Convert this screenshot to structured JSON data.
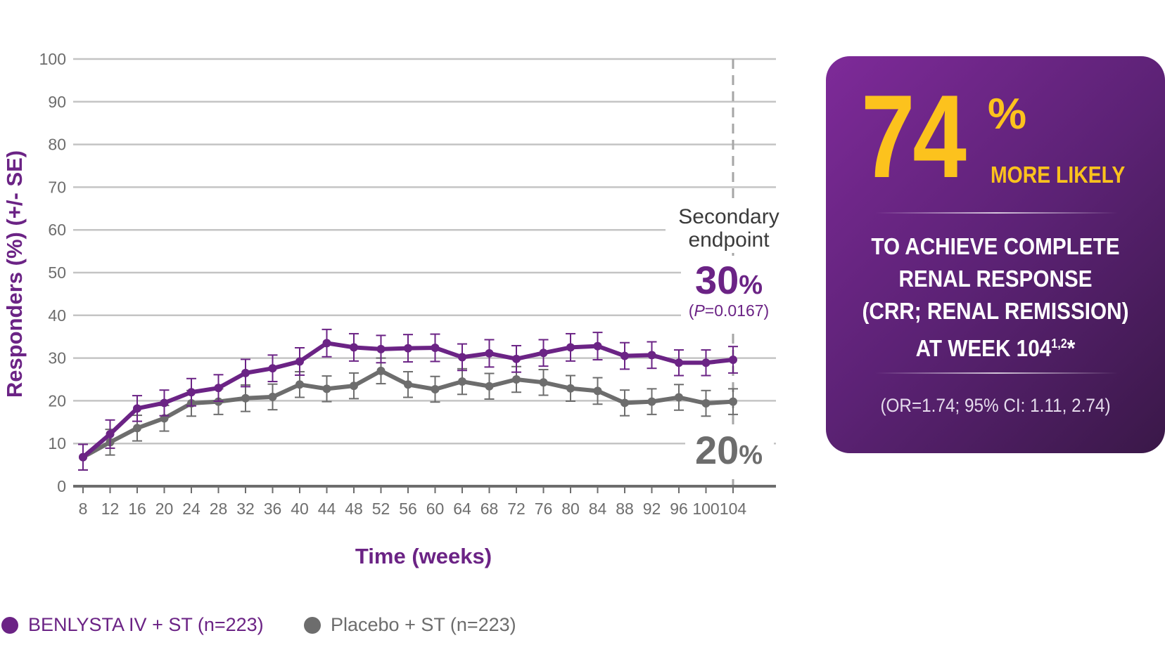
{
  "chart_data": {
    "type": "line",
    "ylabel": "Responders (%) (+/- SE)",
    "xlabel": "Time (weeks)",
    "ylim": [
      0,
      100
    ],
    "yticks": [
      0,
      10,
      20,
      30,
      40,
      50,
      60,
      70,
      80,
      90,
      100
    ],
    "x": [
      8,
      12,
      16,
      20,
      24,
      28,
      32,
      36,
      40,
      44,
      48,
      52,
      56,
      60,
      64,
      68,
      72,
      76,
      80,
      84,
      88,
      92,
      96,
      100,
      104
    ],
    "grid": true,
    "legend_position": "bottom-left",
    "series": [
      {
        "name": "BENLYSTA IV + ST (n=223)",
        "color": "#6b2385",
        "values": [
          6.8,
          12.2,
          18.2,
          19.5,
          22.0,
          23.0,
          26.5,
          27.6,
          29.2,
          33.5,
          32.5,
          32.1,
          32.3,
          32.4,
          30.2,
          31.1,
          29.8,
          31.2,
          32.5,
          32.8,
          30.5,
          30.7,
          28.9,
          28.9,
          29.6
        ],
        "se": [
          3.0,
          3.3,
          3.0,
          3.0,
          3.2,
          3.1,
          3.2,
          3.1,
          3.2,
          3.2,
          3.2,
          3.2,
          3.2,
          3.2,
          3.1,
          3.2,
          3.1,
          3.1,
          3.2,
          3.2,
          3.1,
          3.1,
          3.0,
          3.0,
          3.1
        ]
      },
      {
        "name": "Placebo + ST (n=223)",
        "color": "#6d6d6d",
        "values": [
          6.8,
          10.3,
          13.6,
          15.9,
          19.4,
          19.8,
          20.6,
          20.9,
          23.8,
          22.8,
          23.5,
          27.0,
          23.8,
          22.7,
          24.5,
          23.4,
          25.0,
          24.3,
          22.9,
          22.3,
          19.5,
          19.8,
          20.8,
          19.4,
          19.8
        ],
        "se": [
          3.0,
          3.0,
          3.0,
          3.0,
          3.0,
          3.0,
          3.1,
          3.0,
          3.0,
          3.0,
          3.0,
          3.0,
          3.0,
          3.0,
          3.0,
          3.0,
          3.0,
          3.0,
          3.0,
          3.1,
          3.0,
          3.0,
          3.0,
          3.0,
          3.0
        ]
      }
    ],
    "annotations": {
      "endpoint_label_line1": "Secondary",
      "endpoint_label_line2": "endpoint",
      "benlysta_value": "30",
      "benlysta_unit": "%",
      "p_open": "(",
      "p_letter": "P",
      "p_value": "=0.0167)",
      "placebo_value": "20",
      "placebo_unit": "%"
    }
  },
  "callout": {
    "big_number": "74",
    "percent_sign": "%",
    "more_likely": "MORE LIKELY",
    "line1": "TO ACHIEVE COMPLETE",
    "line2": "RENAL RESPONSE",
    "line3": "(CRR; RENAL REMISSION)",
    "line4": "AT WEEK 104",
    "line4_sup": "1,2",
    "line4_star": "*",
    "or_text": "(OR=1.74; 95% CI: 1.11, 2.74)",
    "bg_start": "#7e2a99",
    "bg_end": "#3a1848",
    "accent": "#fcc21d"
  },
  "legend": [
    {
      "label": "BENLYSTA IV + ST (n=223)",
      "color": "#6b2385"
    },
    {
      "label": "Placebo + ST (n=223)",
      "color": "#6d6d6d"
    }
  ]
}
